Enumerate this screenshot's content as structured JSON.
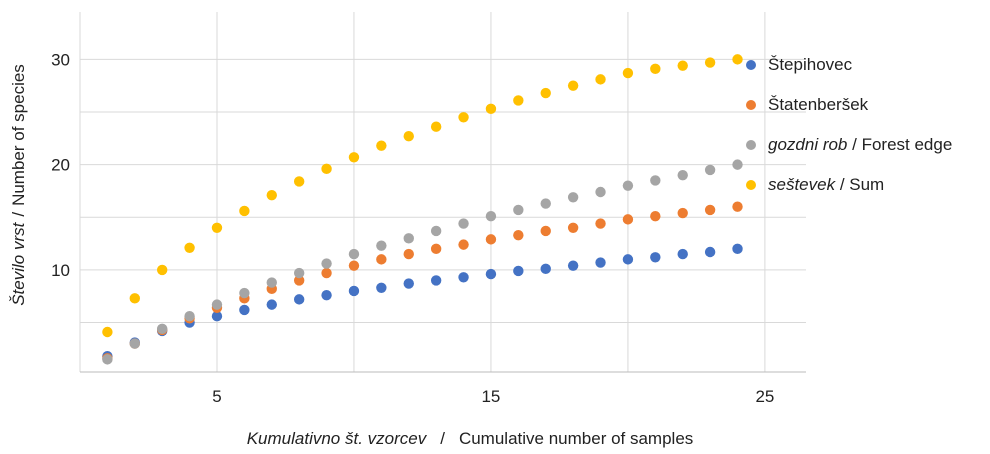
{
  "chart_data": {
    "type": "scatter",
    "title": "",
    "xlabel": {
      "local": "Kumulativno št. vzorcev",
      "sep": "/",
      "english": "Cumulative number of samples"
    },
    "ylabel": {
      "local": "Število vrst",
      "sep": "/",
      "english": "Number of species"
    },
    "xlim": [
      0,
      26.5
    ],
    "ylim": [
      0.3,
      34.5
    ],
    "xticks": [
      5,
      15,
      25
    ],
    "yticks": [
      10,
      20,
      30
    ],
    "x_gridlines": [
      5,
      10,
      15,
      20,
      25
    ],
    "y_gridlines": [
      5,
      10,
      15,
      20,
      25,
      30
    ],
    "grid": true,
    "legend_position": "right",
    "x": [
      1,
      2,
      3,
      4,
      5,
      6,
      7,
      8,
      9,
      10,
      11,
      12,
      13,
      14,
      15,
      16,
      17,
      18,
      19,
      20,
      21,
      22,
      23,
      24
    ],
    "series": [
      {
        "name": "Štepihovec",
        "name_italic": "",
        "name_english": "",
        "color": "#4472c4",
        "values": [
          1.8,
          3.1,
          4.2,
          5.0,
          5.6,
          6.2,
          6.7,
          7.2,
          7.6,
          8.0,
          8.3,
          8.7,
          9.0,
          9.3,
          9.6,
          9.9,
          10.1,
          10.4,
          10.7,
          11.0,
          11.2,
          11.5,
          11.7,
          12.0
        ]
      },
      {
        "name": "Štatenberšek",
        "name_italic": "",
        "name_english": "",
        "color": "#ed7d31",
        "values": [
          1.6,
          3.0,
          4.3,
          5.4,
          6.4,
          7.3,
          8.2,
          9.0,
          9.7,
          10.4,
          11.0,
          11.5,
          12.0,
          12.4,
          12.9,
          13.3,
          13.7,
          14.0,
          14.4,
          14.8,
          15.1,
          15.4,
          15.7,
          16.0
        ]
      },
      {
        "name": "gozdni rob",
        "name_italic": "gozdni rob",
        "name_english": "Forest edge",
        "color": "#a5a5a5",
        "values": [
          1.5,
          3.0,
          4.4,
          5.6,
          6.7,
          7.8,
          8.8,
          9.7,
          10.6,
          11.5,
          12.3,
          13.0,
          13.7,
          14.4,
          15.1,
          15.7,
          16.3,
          16.9,
          17.4,
          18.0,
          18.5,
          19.0,
          19.5,
          20.0
        ]
      },
      {
        "name": "seštevek",
        "name_italic": "seštevek",
        "name_english": "Sum",
        "color": "#ffc000",
        "values": [
          4.1,
          7.3,
          10.0,
          12.1,
          14.0,
          15.6,
          17.1,
          18.4,
          19.6,
          20.7,
          21.8,
          22.7,
          23.6,
          24.5,
          25.3,
          26.1,
          26.8,
          27.5,
          28.1,
          28.7,
          29.1,
          29.4,
          29.7,
          30.0
        ]
      }
    ]
  }
}
